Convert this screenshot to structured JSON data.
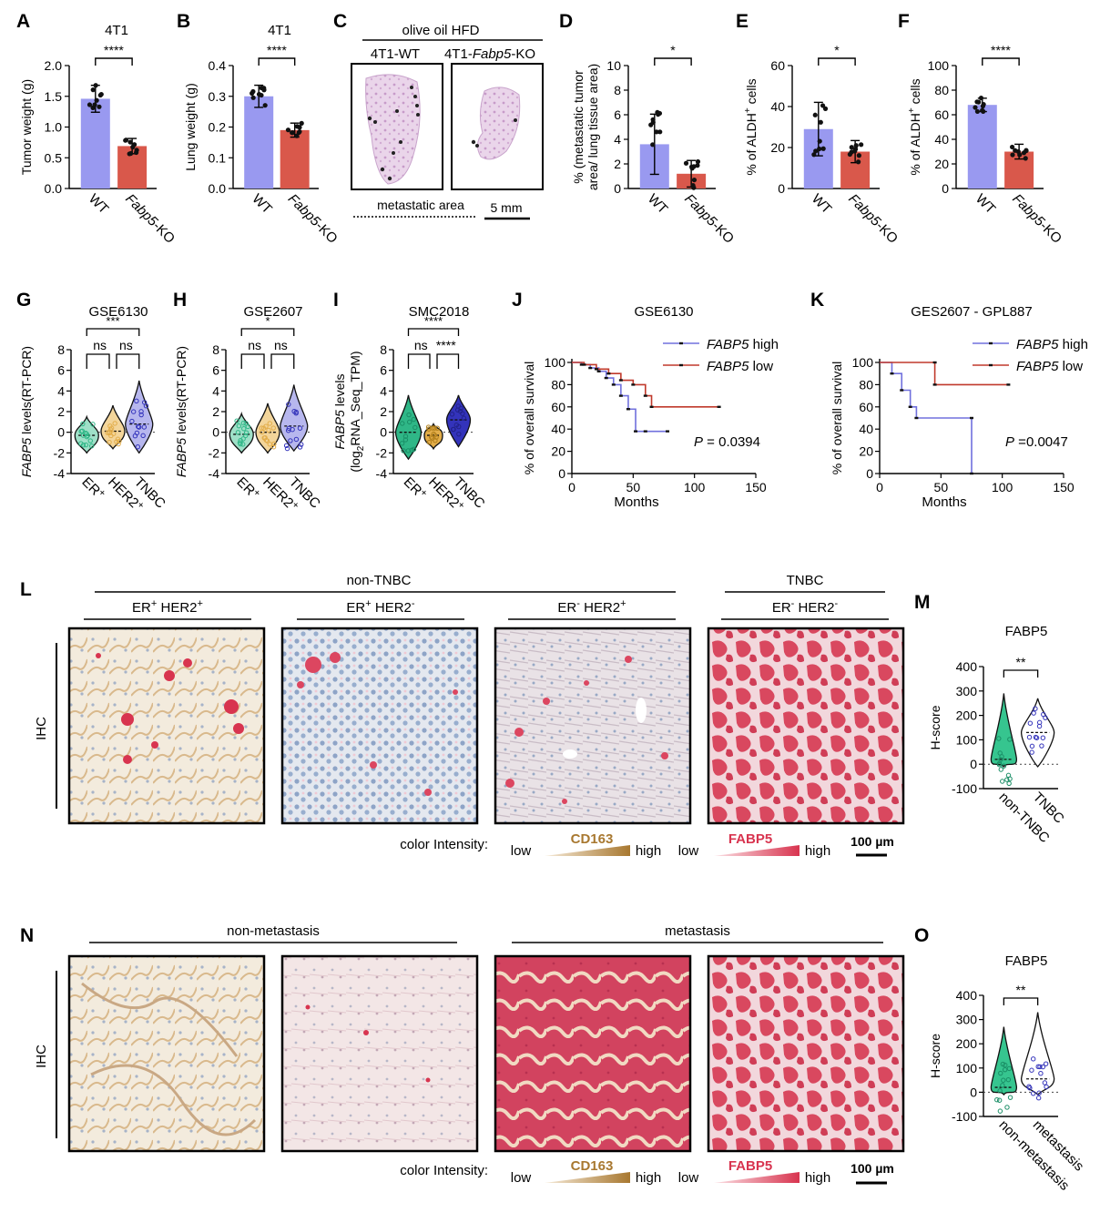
{
  "colors": {
    "wt_bar": "#9999f0",
    "ko_bar": "#d9584b",
    "er": "#2fb787",
    "her2": "#e2ad4a",
    "tnbc": "#3333bb",
    "km_high": "#7070dd",
    "km_low": "#c0392b",
    "ihc_red": "#d8344f",
    "cd163_brown": "#a87830"
  },
  "panels": {
    "A": {
      "letter": "A",
      "title": "4T1",
      "ylabel": "Tumor weight (g)",
      "yticks": [
        "0.0",
        "0.5",
        "1.0",
        "1.5",
        "2.0"
      ],
      "cats": [
        "WT",
        "Fabp5-KO"
      ],
      "sig": "****",
      "chart_data": {
        "type": "bar",
        "categories": [
          "WT",
          "Fabp5-KO"
        ],
        "values": [
          1.46,
          0.69
        ],
        "ylim": [
          0,
          2.0
        ]
      }
    },
    "B": {
      "letter": "B",
      "title": "4T1",
      "ylabel": "Lung weight (g)",
      "yticks": [
        "0.0",
        "0.1",
        "0.2",
        "0.3",
        "0.4"
      ],
      "cats": [
        "WT",
        "Fabp5-KO"
      ],
      "sig": "****",
      "chart_data": {
        "type": "bar",
        "categories": [
          "WT",
          "Fabp5-KO"
        ],
        "values": [
          0.3,
          0.19
        ],
        "ylim": [
          0,
          0.4
        ]
      }
    },
    "C": {
      "letter": "C",
      "title": "olive oil HFD",
      "group1": "4T1-WT",
      "group2_prefix": "4T1-",
      "group2_italic": "Fabp5",
      "group2_suffix": "-KO",
      "legend": "metastatic area",
      "scale": "5 mm"
    },
    "D": {
      "letter": "D",
      "title": "",
      "ylabel": "% (metastatic tumor area/ lung tissue area)",
      "yticks": [
        "0",
        "2",
        "4",
        "6",
        "8",
        "10"
      ],
      "cats": [
        "WT",
        "Fabp5-KO"
      ],
      "sig": "*",
      "chart_data": {
        "type": "bar",
        "categories": [
          "WT",
          "Fabp5-KO"
        ],
        "values": [
          3.6,
          1.2
        ],
        "ylim": [
          0,
          10
        ]
      }
    },
    "E": {
      "letter": "E",
      "title": "",
      "ylabel": "% of ALDH+ cells",
      "yticks": [
        "0",
        "20",
        "40",
        "60"
      ],
      "cats": [
        "WT",
        "Fabp5-KO"
      ],
      "sig": "*",
      "chart_data": {
        "type": "bar",
        "categories": [
          "WT",
          "Fabp5-KO"
        ],
        "values": [
          29,
          18
        ],
        "ylim": [
          0,
          60
        ]
      }
    },
    "F": {
      "letter": "F",
      "title": "",
      "ylabel": "% of ALDH+ cells",
      "yticks": [
        "0",
        "20",
        "40",
        "60",
        "80",
        "100"
      ],
      "cats": [
        "WT",
        "Fabp5-KO"
      ],
      "sig": "****",
      "chart_data": {
        "type": "bar",
        "categories": [
          "WT",
          "Fabp5-KO"
        ],
        "values": [
          68,
          30
        ],
        "ylim": [
          0,
          100
        ]
      }
    },
    "G": {
      "letter": "G",
      "title": "GSE6130",
      "ylabel": "FABP5 levels(RT-PCR)",
      "yticks": [
        "-4",
        "-2",
        "0",
        "2",
        "4",
        "6",
        "8"
      ],
      "cats": [
        "ER+",
        "HER2+",
        "TNBC"
      ],
      "sig_top": "***",
      "sig_a": "ns",
      "sig_b": "ns",
      "chart_data": {
        "type": "violin",
        "categories": [
          "ER+",
          "HER2+",
          "TNBC"
        ],
        "medians": [
          -0.3,
          0.1,
          0.8
        ],
        "ylim": [
          -4,
          8
        ]
      }
    },
    "H": {
      "letter": "H",
      "title": "GSE2607",
      "ylabel": "FABP5 levels(RT-PCR)",
      "yticks": [
        "-4",
        "-2",
        "0",
        "2",
        "4",
        "6",
        "8"
      ],
      "cats": [
        "ER+",
        "HER2+",
        "TNBC"
      ],
      "sig_top": "*",
      "sig_a": "ns",
      "sig_b": "ns",
      "chart_data": {
        "type": "violin",
        "categories": [
          "ER+",
          "HER2+",
          "TNBC"
        ],
        "medians": [
          -0.2,
          0.0,
          0.6
        ],
        "ylim": [
          -4,
          8
        ]
      }
    },
    "I": {
      "letter": "I",
      "title": "SMC2018",
      "ylabel1": "FABP5 levels",
      "ylabel2": "(log2RNA_Seq_TPM)",
      "yticks": [
        "-4",
        "-2",
        "0",
        "2",
        "4",
        "6",
        "8"
      ],
      "cats": [
        "ER+",
        "HER2+",
        "TNBC"
      ],
      "sig_top": "****",
      "sig_a": "ns",
      "sig_b": "****",
      "chart_data": {
        "type": "violin",
        "categories": [
          "ER+",
          "HER2+",
          "TNBC"
        ],
        "medians": [
          0.0,
          -0.3,
          1.2
        ],
        "ylim": [
          -4,
          8
        ]
      }
    },
    "J": {
      "letter": "J",
      "title": "GSE6130",
      "ylabel": "% of overall survival",
      "xlabel": "Months",
      "xticks": [
        "0",
        "50",
        "100",
        "150"
      ],
      "yticks": [
        "0",
        "20",
        "40",
        "60",
        "80",
        "100"
      ],
      "legend_high": "FABP5 high",
      "legend_low": "FABP5 low",
      "pval": "P = 0.0394",
      "chart_data": {
        "type": "line",
        "series": [
          {
            "name": "FABP5 high",
            "x": [
              0,
              8,
              15,
              22,
              28,
              34,
              40,
              46,
              52,
              60,
              78
            ],
            "y": [
              100,
              98,
              95,
              92,
              86,
              80,
              70,
              58,
              38,
              38,
              38
            ]
          },
          {
            "name": "FABP5 low",
            "x": [
              0,
              10,
              20,
              30,
              40,
              50,
              60,
              65,
              120
            ],
            "y": [
              100,
              98,
              94,
              90,
              84,
              80,
              70,
              60,
              60
            ]
          }
        ],
        "xlim": [
          0,
          150
        ],
        "ylim": [
          0,
          100
        ]
      }
    },
    "K": {
      "letter": "K",
      "title": "GES2607 - GPL887",
      "ylabel": "% of overall survival",
      "xlabel": "Months",
      "xticks": [
        "0",
        "50",
        "100",
        "150"
      ],
      "yticks": [
        "0",
        "20",
        "40",
        "60",
        "80",
        "100"
      ],
      "legend_high": "FABP5 high",
      "legend_low": "FABP5 low",
      "pval": "P =0.0047",
      "chart_data": {
        "type": "line",
        "series": [
          {
            "name": "FABP5 high",
            "x": [
              0,
              10,
              18,
              25,
              30,
              75,
              75
            ],
            "y": [
              100,
              90,
              75,
              60,
              50,
              50,
              0
            ]
          },
          {
            "name": "FABP5 low",
            "x": [
              0,
              45,
              45,
              105
            ],
            "y": [
              100,
              100,
              80,
              80
            ]
          }
        ],
        "xlim": [
          0,
          150
        ],
        "ylim": [
          0,
          100
        ]
      }
    },
    "L": {
      "letter": "L",
      "header_left": "non-TNBC",
      "header_right": "TNBC",
      "sub": [
        [
          "ER",
          "+",
          " HER2",
          "+"
        ],
        [
          "ER",
          "+",
          " HER2",
          "-"
        ],
        [
          "ER",
          "-",
          " HER2",
          "+"
        ],
        [
          "ER",
          "-",
          " HER2",
          "-"
        ]
      ],
      "side": "IHC",
      "color_label": "color Intensity:",
      "low": "low",
      "high": "high",
      "cd163": "CD163",
      "fabp5": "FABP5",
      "scale": "100 µm"
    },
    "M": {
      "letter": "M",
      "title": "FABP5",
      "ylabel": "H-score",
      "yticks": [
        "-100",
        "0",
        "100",
        "200",
        "300",
        "400"
      ],
      "cats": [
        "non-TNBC",
        "TNBC"
      ],
      "sig": "**",
      "chart_data": {
        "type": "violin",
        "categories": [
          "non-TNBC",
          "TNBC"
        ],
        "medians": [
          20,
          130
        ],
        "ylim": [
          -100,
          400
        ]
      }
    },
    "N": {
      "letter": "N",
      "header_left": "non-metastasis",
      "header_right": "metastasis",
      "side": "IHC",
      "color_label": "color Intensity:",
      "low": "low",
      "high": "high",
      "cd163": "CD163",
      "fabp5": "FABP5",
      "scale": "100 µm"
    },
    "O": {
      "letter": "O",
      "title": "FABP5",
      "ylabel": "H-score",
      "yticks": [
        "-100",
        "0",
        "100",
        "200",
        "300",
        "400"
      ],
      "cats": [
        "non-metastasis",
        "metastasis"
      ],
      "sig": "**",
      "chart_data": {
        "type": "violin",
        "categories": [
          "non-metastasis",
          "metastasis"
        ],
        "medians": [
          20,
          55
        ],
        "ylim": [
          -100,
          400
        ]
      }
    }
  }
}
